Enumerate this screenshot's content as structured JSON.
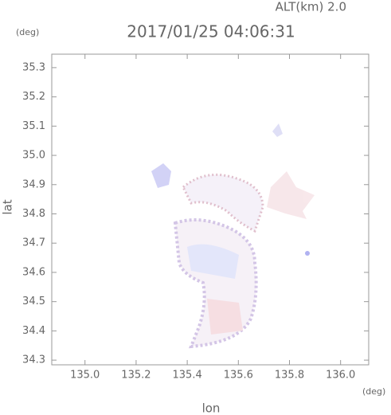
{
  "chart_data": {
    "type": "map",
    "title": "2017/01/25 04:06:31",
    "annotation": "ALT(km) 2.0",
    "x_label": "lon",
    "y_label": "lat",
    "x_unit": "(deg)",
    "y_unit": "(deg)",
    "xlim": [
      134.87,
      136.11
    ],
    "ylim": [
      34.284,
      35.346
    ],
    "xticks": [
      {
        "value": 135.0,
        "label": "135.0"
      },
      135.2,
      135.4,
      135.6,
      135.8,
      {
        "value": 136.0,
        "label": "136.0"
      }
    ],
    "yticks": [
      34.3,
      34.4,
      34.5,
      34.6,
      34.7,
      34.8,
      34.9,
      {
        "value": 35.0,
        "label": "35.0"
      },
      35.1,
      35.2,
      35.3
    ]
  }
}
